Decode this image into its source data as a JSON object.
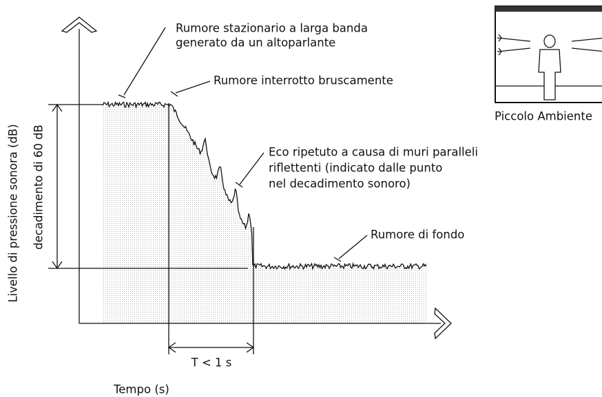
{
  "axes": {
    "y_label": "Livello di pressione sonora (dB)",
    "x_label": "Tempo (s)"
  },
  "decay_label": "decadimento di 60 dB",
  "time_label": "T < 1 s",
  "annotations": [
    {
      "lines": [
        "Rumore stazionario a larga banda",
        "generato da un altoparlante"
      ]
    },
    {
      "lines": [
        "Rumore interrotto bruscamente"
      ]
    },
    {
      "lines": [
        "Eco ripetuto a causa di muri paralleli",
        "riflettenti (indicato dalle punto",
        "nel decadimento sonoro)"
      ]
    },
    {
      "lines": [
        "Rumore di fondo"
      ]
    }
  ],
  "inset": {
    "label": "Piccolo Ambiente"
  }
}
